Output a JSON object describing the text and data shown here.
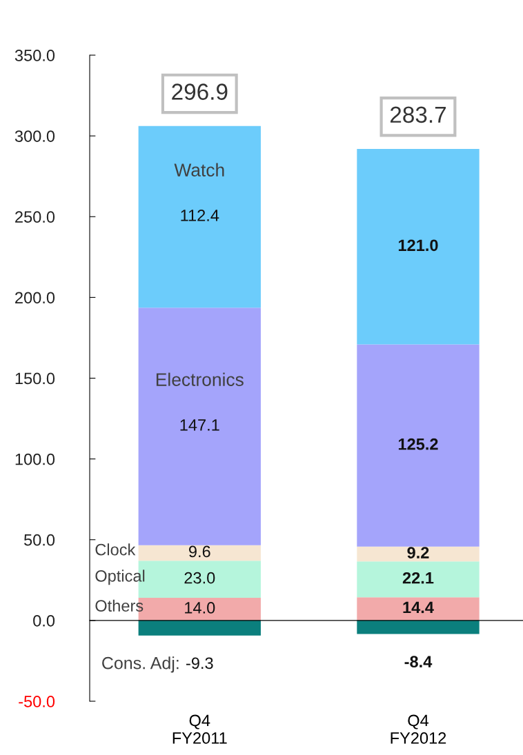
{
  "chart_data": {
    "type": "bar",
    "stacked": true,
    "categories": [
      "Q4\nFY2011",
      "Q4\nFY2012"
    ],
    "series": [
      {
        "name": "Others",
        "color": "#f2aaaa",
        "values": [
          14.0,
          14.4
        ],
        "value_labels": [
          "14.0",
          "14.4"
        ]
      },
      {
        "name": "Optical",
        "color": "#b5f5dc",
        "values": [
          23.0,
          22.1
        ],
        "value_labels": [
          "23.0",
          "22.1"
        ]
      },
      {
        "name": "Clock",
        "color": "#f6e6d2",
        "values": [
          9.6,
          9.2
        ],
        "value_labels": [
          "9.6",
          "9.2"
        ]
      },
      {
        "name": "Electronics",
        "color": "#a4a4fb",
        "values": [
          147.1,
          125.2
        ],
        "value_labels": [
          "147.1",
          "125.2"
        ]
      },
      {
        "name": "Watch",
        "color": "#6cccfb",
        "values": [
          112.4,
          121.0
        ],
        "value_labels": [
          "112.4",
          "121.0"
        ]
      },
      {
        "name": "Cons. Adj:",
        "color": "#0b7f7d",
        "values": [
          -9.3,
          -8.4
        ],
        "value_labels": [
          "-9.3",
          "-8.4"
        ]
      }
    ],
    "totals": [
      "296.9",
      "283.7"
    ],
    "ylim": [
      -50,
      350
    ],
    "yticks": [
      {
        "value": -50,
        "label": "-50.0"
      },
      {
        "value": 0,
        "label": "0.0"
      },
      {
        "value": 50,
        "label": "50.0"
      },
      {
        "value": 100,
        "label": "100.0"
      },
      {
        "value": 150,
        "label": "150.0"
      },
      {
        "value": 200,
        "label": "200.0"
      },
      {
        "value": 250,
        "label": "250.0"
      },
      {
        "value": 300,
        "label": "300.0"
      },
      {
        "value": 350,
        "label": "350.0"
      }
    ],
    "legend": false
  }
}
